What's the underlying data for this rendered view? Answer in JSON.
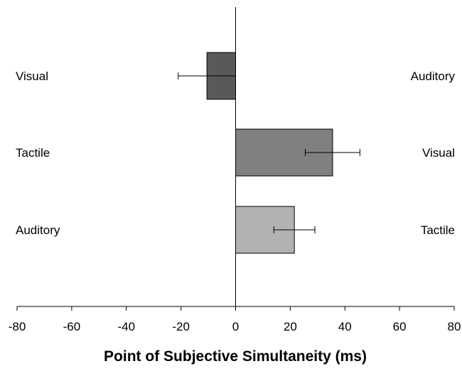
{
  "chart_data": {
    "type": "bar",
    "orientation": "horizontal",
    "xlabel": "Point of Subjective Simultaneity (ms)",
    "xlim": [
      -80,
      80
    ],
    "xticks": [
      -80,
      -60,
      -40,
      -20,
      0,
      20,
      40,
      60,
      80
    ],
    "grid": false,
    "rows": [
      {
        "left_label": "Visual",
        "right_label": "Auditory",
        "value": -10.5,
        "error": 10.5,
        "color": "#595959"
      },
      {
        "left_label": "Tactile",
        "right_label": "Visual",
        "value": 35.5,
        "error": 10,
        "color": "#808080"
      },
      {
        "left_label": "Auditory",
        "right_label": "Tactile",
        "value": 21.5,
        "error": 7.5,
        "color": "#b2b2b2"
      }
    ]
  }
}
